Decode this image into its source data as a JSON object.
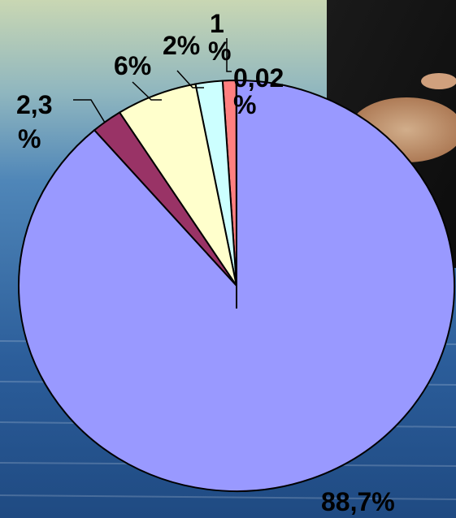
{
  "chart_data": {
    "type": "pie",
    "title": "",
    "start_angle_deg": 0,
    "direction": "clockwise",
    "slices": [
      {
        "label": "0,02 %",
        "value": 0.02,
        "color": "#ff7b7b"
      },
      {
        "label": "1 %",
        "value": 1,
        "color": "#ff8080"
      },
      {
        "label": "2%",
        "value": 2,
        "color": "#ccffff"
      },
      {
        "label": "6%",
        "value": 6,
        "color": "#ffffcc"
      },
      {
        "label": "2,3 %",
        "value": 2.3,
        "color": "#993366"
      },
      {
        "label": "88,7%",
        "value": 88.7,
        "color": "#9999ff"
      }
    ],
    "legend": "none"
  },
  "labels": {
    "l_0002_a": "0,02",
    "l_0002_b": "%",
    "l_1_a": "1",
    "l_1_b": "%",
    "l_2": "2%",
    "l_6": "6%",
    "l_23_a": "2,3",
    "l_23_b": "%",
    "l_887": "88,7%"
  }
}
